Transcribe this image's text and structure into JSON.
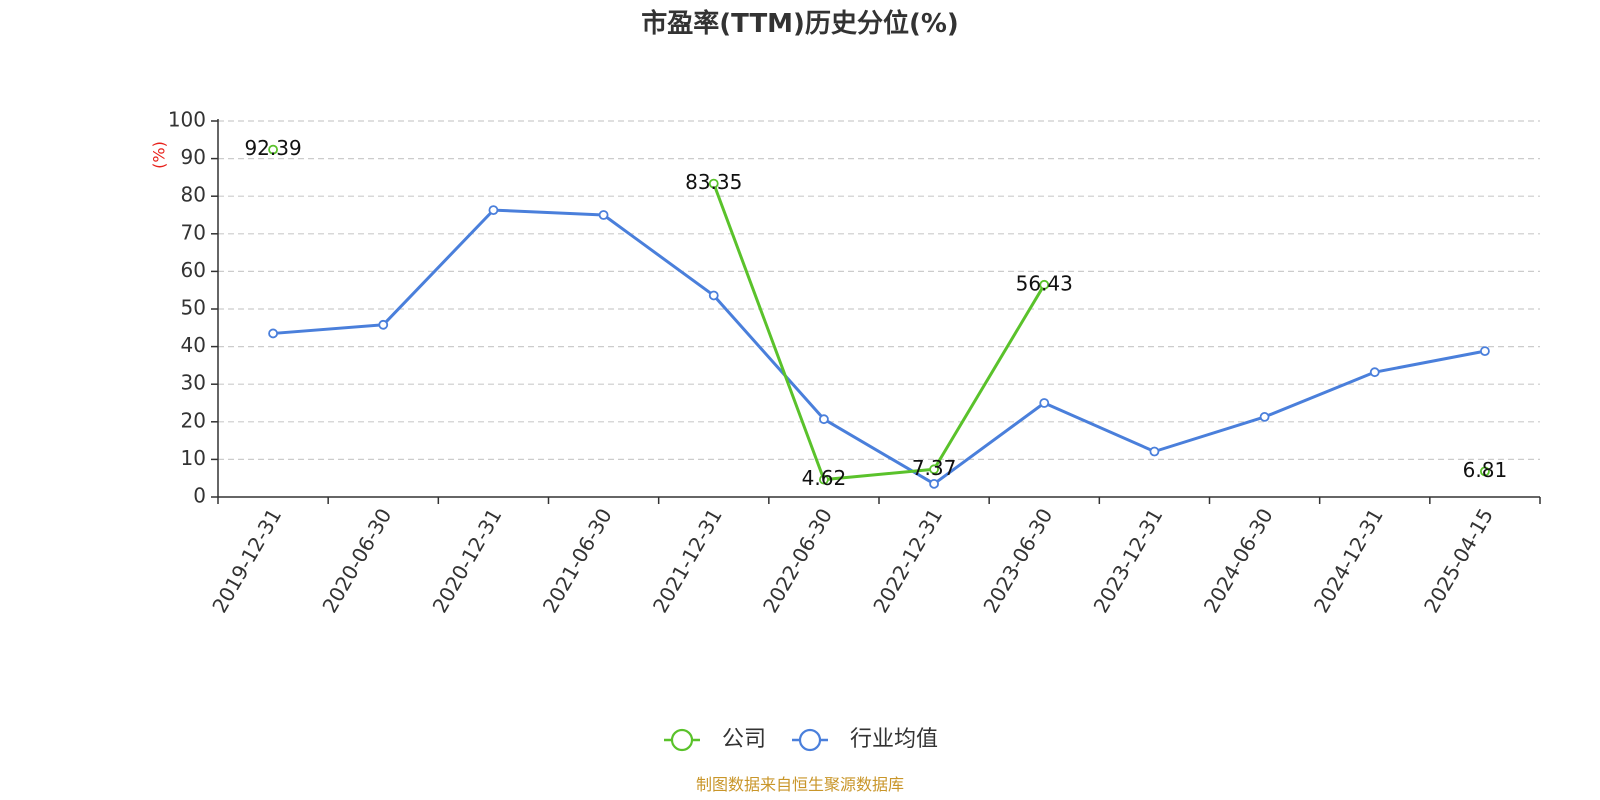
{
  "chart_data": {
    "type": "line",
    "title": "市盈率(TTM)历史分位(%)",
    "ylabel": "(%)",
    "ylim": [
      0,
      100
    ],
    "yticks": [
      0,
      10,
      20,
      30,
      40,
      50,
      60,
      70,
      80,
      90,
      100
    ],
    "grid": true,
    "legend_position": "bottom",
    "categories": [
      "2019-12-31",
      "2020-06-30",
      "2020-12-31",
      "2021-06-30",
      "2021-12-31",
      "2022-06-30",
      "2022-12-31",
      "2023-06-30",
      "2023-12-31",
      "2024-06-30",
      "2024-12-31",
      "2025-04-15"
    ],
    "series": [
      {
        "name": "公司",
        "color": "#5ac22b",
        "values": [
          92.39,
          null,
          null,
          null,
          83.35,
          4.62,
          7.37,
          56.43,
          null,
          null,
          null,
          6.81
        ],
        "labels": [
          "92.39",
          "",
          "",
          "",
          "83.35",
          "4.62",
          "7.37",
          "56.43",
          "",
          "",
          "",
          "6.81"
        ]
      },
      {
        "name": "行业均值",
        "color": "#4a7fdb",
        "values": [
          43.5,
          45.8,
          76.3,
          75.0,
          53.6,
          20.7,
          3.5,
          25.0,
          12.1,
          21.3,
          33.2,
          38.8
        ],
        "labels": []
      }
    ],
    "source": "制图数据来自恒生聚源数据库",
    "source_color": "#c9962a",
    "unit_color": "#e8211b"
  }
}
